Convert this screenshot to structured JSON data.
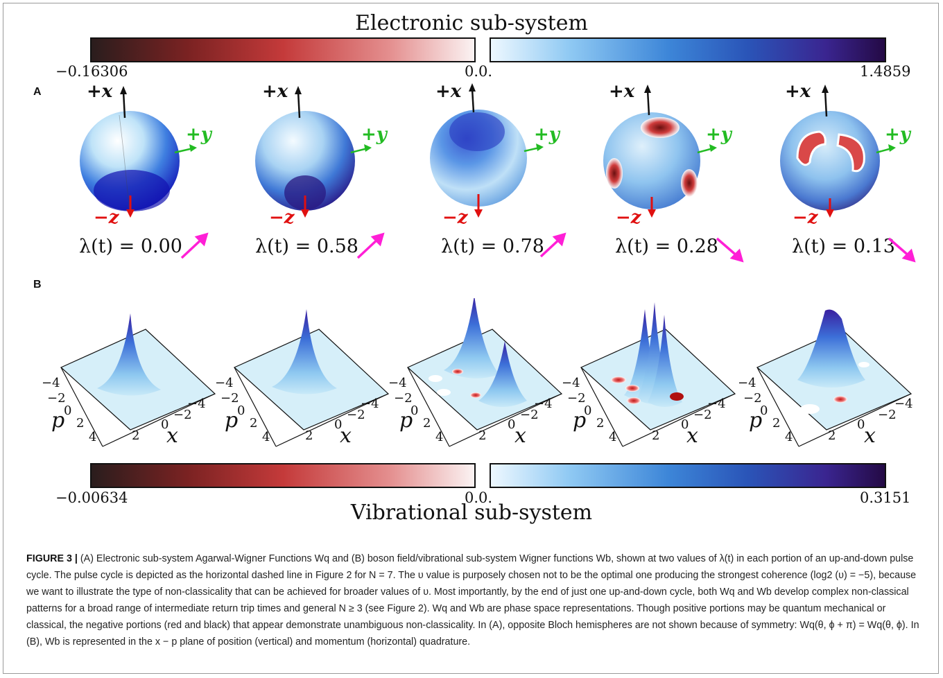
{
  "electronic": {
    "title": "Electronic sub-system",
    "neg_min": "−0.16306",
    "zero": "0.0.",
    "pos_max": "1.4859",
    "colors": {
      "neg_dark": "#2a1d1d",
      "neg_red": "#c43a3a",
      "pos_light": "#eef8ff",
      "pos_blue": "#3d86d8",
      "pos_dark": "#240a45"
    }
  },
  "vibrational": {
    "title": "Vibrational sub-system",
    "neg_min": "−0.00634",
    "zero": "0.0.",
    "pos_max": "0.3151"
  },
  "panel_a": {
    "letter": "A",
    "axis_x": "+x",
    "axis_y": "+y",
    "axis_z": "−z",
    "axis_colors": {
      "x": "#111111",
      "y": "#22bb22",
      "z": "#e01010"
    },
    "arrow_color": "#ff1fd6",
    "spheres": [
      {
        "lambda": "λ(t) = 0.00",
        "trend": "up"
      },
      {
        "lambda": "λ(t) = 0.58",
        "trend": "up"
      },
      {
        "lambda": "λ(t) = 0.78",
        "trend": "up"
      },
      {
        "lambda": "λ(t) = 0.28",
        "trend": "down"
      },
      {
        "lambda": "λ(t) = 0.13",
        "trend": "down"
      }
    ]
  },
  "panel_b": {
    "letter": "B",
    "axis_p": "p",
    "axis_x": "x",
    "ticks_left": [
      "−4",
      "−2",
      "0",
      "2",
      "4"
    ],
    "ticks_right": [
      "−4",
      "−2",
      "0",
      "2",
      "4"
    ]
  },
  "caption": {
    "label": "FIGURE 3 |",
    "text": "(A) Electronic sub-system Agarwal-Wigner Functions Wq and (B) boson field/vibrational sub-system Wigner functions Wb, shown at two values of λ(t) in each portion of an up-and-down pulse cycle. The pulse cycle is depicted as the horizontal dashed line in Figure 2 for N = 7. The υ value is purposely chosen not to be the optimal one producing the strongest coherence (log2 (υ) = −5), because we want to illustrate the type of non-classicality that can be achieved for broader values of υ. Most importantly, by the end of just one up-and-down cycle, both Wq and Wb develop complex non-classical patterns for a broad range of intermediate return trip times and general N ≥ 3 (see Figure 2). Wq and Wb are phase space representations. Though positive portions may be quantum mechanical or classical, the negative portions (red and black) that appear demonstrate unambiguous non-classicality. In (A), opposite Bloch hemispheres are not shown because of symmetry: Wq(θ, ϕ + π) = Wq(θ, ϕ). In (B), Wb is represented in the x − p plane of position (vertical) and momentum (horizontal) quadrature."
  }
}
